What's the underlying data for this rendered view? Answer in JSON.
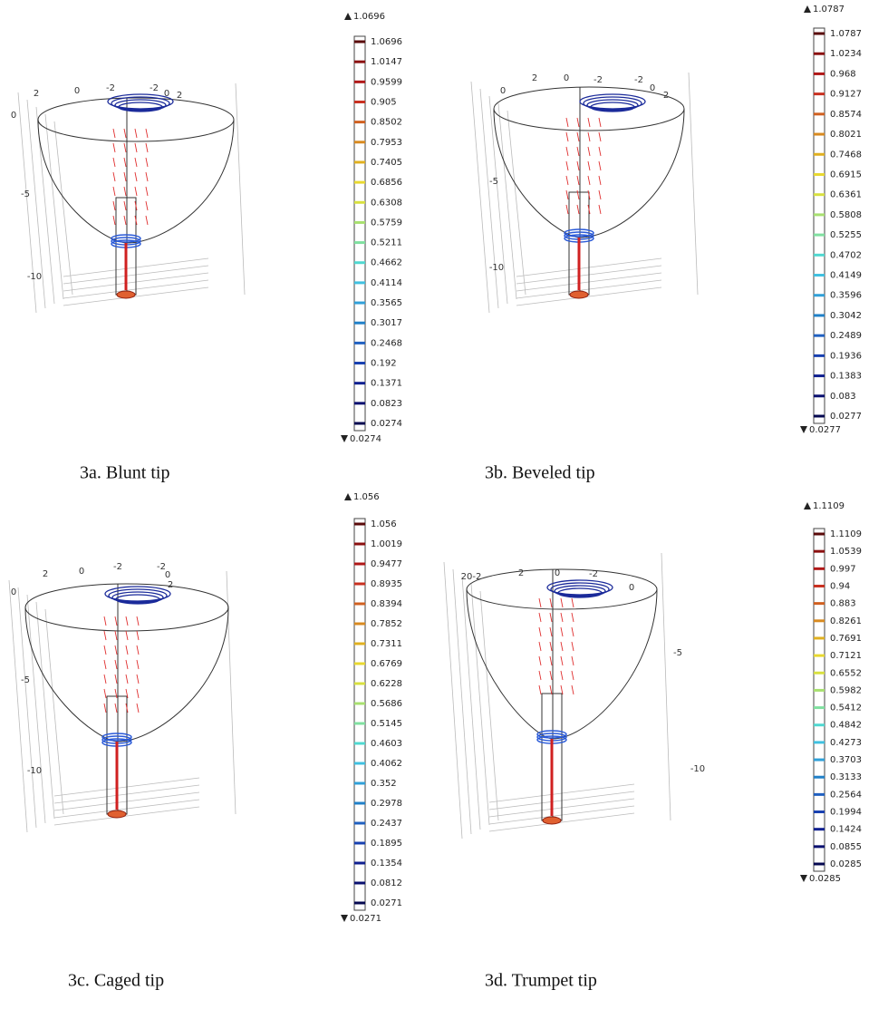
{
  "panels": [
    {
      "caption": "3a. Blunt tip",
      "max": "1.0696",
      "min": "0.0274",
      "ticks": [
        "1.0696",
        "1.0147",
        "0.9599",
        "0.905",
        "0.8502",
        "0.7953",
        "0.7405",
        "0.6856",
        "0.6308",
        "0.5759",
        "0.5211",
        "0.4662",
        "0.4114",
        "0.3565",
        "0.3017",
        "0.2468",
        "0.192",
        "0.1371",
        "0.0823",
        "0.0274"
      ],
      "axis_labels": [
        "2",
        "0",
        "-2",
        "-2",
        "0",
        "2",
        "0",
        "-5",
        "-10"
      ]
    },
    {
      "caption": "3b. Beveled tip",
      "max": "1.0787",
      "min": "0.0277",
      "ticks": [
        "1.0787",
        "1.0234",
        "0.968",
        "0.9127",
        "0.8574",
        "0.8021",
        "0.7468",
        "0.6915",
        "0.6361",
        "0.5808",
        "0.5255",
        "0.4702",
        "0.4149",
        "0.3596",
        "0.3042",
        "0.2489",
        "0.1936",
        "0.1383",
        "0.083",
        "0.0277"
      ],
      "axis_labels": [
        "0",
        "2",
        "0",
        "-2",
        "-2",
        "0",
        "2",
        "-5",
        "-10"
      ]
    },
    {
      "caption": "3c. Caged tip",
      "max": "1.056",
      "min": "0.0271",
      "ticks": [
        "1.056",
        "1.0019",
        "0.9477",
        "0.8935",
        "0.8394",
        "0.7852",
        "0.7311",
        "0.6769",
        "0.6228",
        "0.5686",
        "0.5145",
        "0.4603",
        "0.4062",
        "0.352",
        "0.2978",
        "0.2437",
        "0.1895",
        "0.1354",
        "0.0812",
        "0.0271"
      ],
      "axis_labels": [
        "2",
        "0",
        "-2",
        "-2",
        "0",
        "2",
        "0",
        "-5",
        "-10"
      ]
    },
    {
      "caption": "3d. Trumpet tip",
      "max": "1.1109",
      "min": "0.0285",
      "ticks": [
        "1.1109",
        "1.0539",
        "0.997",
        "0.94",
        "0.883",
        "0.8261",
        "0.7691",
        "0.7121",
        "0.6552",
        "0.5982",
        "0.5412",
        "0.4842",
        "0.4273",
        "0.3703",
        "0.3133",
        "0.2564",
        "0.1994",
        "0.1424",
        "0.0855",
        "0.0285"
      ],
      "axis_labels": [
        "20-2",
        "2",
        "0",
        "-2",
        "0",
        "-5",
        "-10"
      ]
    }
  ]
}
